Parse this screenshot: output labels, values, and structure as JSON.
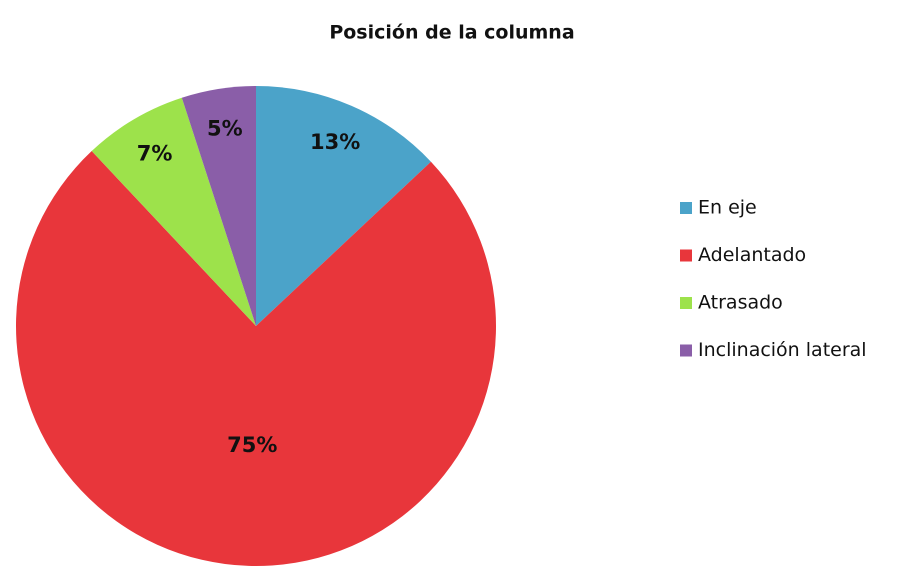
{
  "chart_data": {
    "type": "pie",
    "title": "Posición de la columna",
    "categories": [
      "En eje",
      "Adelantado",
      "Atrasado",
      "Inclinación lateral"
    ],
    "values": [
      13,
      75,
      7,
      5
    ],
    "value_labels": [
      "13%",
      "75%",
      "7%",
      "5%"
    ],
    "colors": [
      "#4ba3c9",
      "#e8363b",
      "#9de24b",
      "#8a5ea8"
    ],
    "legend": "right"
  }
}
